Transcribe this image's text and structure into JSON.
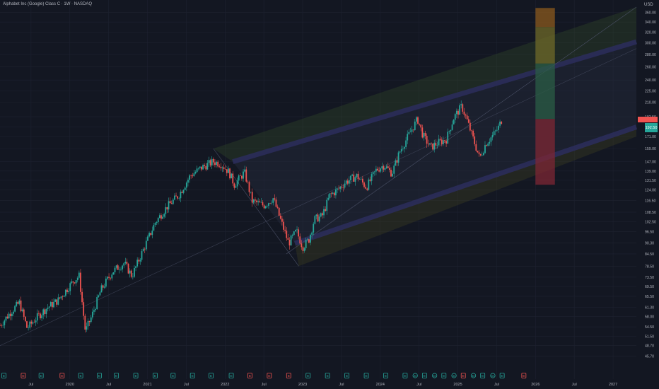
{
  "header": {
    "title": "Alphabet Inc (Google) Class C · 1W · NASDAQ",
    "currency": "USD"
  },
  "colors": {
    "background": "#131722",
    "grid": "#1e2230",
    "up": "#26a69a",
    "down": "#ef5350",
    "label_price": "#26a69a",
    "label_target": "#ef5350"
  },
  "price_labels": {
    "current": "192.50",
    "target": ""
  },
  "chart_data": {
    "type": "candlestick",
    "title": "Alphabet Inc (Google) Class C · 1W · NASDAQ",
    "y_scale": "log",
    "ylim": [
      43,
      372
    ],
    "y_ticks": [
      45.7,
      48.7,
      51.5,
      54.5,
      58,
      61.3,
      65.5,
      69.5,
      73.5,
      78.5,
      84.5,
      90.3,
      96.5,
      102.5,
      108.5,
      116.5,
      124,
      131.5,
      139,
      147,
      159,
      171,
      181,
      192.5,
      210,
      225,
      240,
      260,
      280,
      300,
      320,
      340,
      360
    ],
    "y_tick_labels": [
      "45.70",
      "48.70",
      "51.50",
      "54.50",
      "58.00",
      "61.30",
      "65.50",
      "69.50",
      "73.50",
      "78.50",
      "84.50",
      "90.30",
      "96.50",
      "102.50",
      "108.50",
      "116.50",
      "124.00",
      "131.50",
      "139.00",
      "147.00",
      "159.00",
      "171.00",
      "181.00",
      "192.50",
      "210.00",
      "225.00",
      "240.00",
      "260.00",
      "280.00",
      "300.00",
      "320.00",
      "340.00",
      "360.00"
    ],
    "x_range": [
      2019.1,
      2027.3
    ],
    "x_ticks": [
      2019.5,
      2020,
      2020.5,
      2021,
      2021.5,
      2022,
      2022.5,
      2023,
      2023.5,
      2024,
      2024.5,
      2025,
      2025.5,
      2026,
      2026.5,
      2027
    ],
    "x_tick_labels": [
      "Jul",
      "2020",
      "Jul",
      "2021",
      "Jul",
      "2022",
      "Jul",
      "2023",
      "Jul",
      "2024",
      "Jul",
      "2025",
      "Jul",
      "2026",
      "Jul",
      "2027"
    ],
    "price_path": [
      [
        2019.1,
        55
      ],
      [
        2019.25,
        60
      ],
      [
        2019.35,
        63
      ],
      [
        2019.45,
        54
      ],
      [
        2019.55,
        57
      ],
      [
        2019.7,
        61
      ],
      [
        2019.85,
        64
      ],
      [
        2020.05,
        72
      ],
      [
        2020.12,
        74
      ],
      [
        2020.2,
        53
      ],
      [
        2020.28,
        58
      ],
      [
        2020.4,
        68
      ],
      [
        2020.55,
        76
      ],
      [
        2020.7,
        80
      ],
      [
        2020.8,
        74
      ],
      [
        2020.95,
        87
      ],
      [
        2021.1,
        102
      ],
      [
        2021.25,
        112
      ],
      [
        2021.4,
        120
      ],
      [
        2021.55,
        135
      ],
      [
        2021.7,
        142
      ],
      [
        2021.85,
        147
      ],
      [
        2021.95,
        145
      ],
      [
        2022.05,
        138
      ],
      [
        2022.12,
        128
      ],
      [
        2022.25,
        138
      ],
      [
        2022.35,
        116
      ],
      [
        2022.5,
        113
      ],
      [
        2022.62,
        118
      ],
      [
        2022.72,
        103
      ],
      [
        2022.82,
        90
      ],
      [
        2022.92,
        97
      ],
      [
        2023.0,
        88
      ],
      [
        2023.08,
        92
      ],
      [
        2023.15,
        104
      ],
      [
        2023.25,
        106
      ],
      [
        2023.35,
        120
      ],
      [
        2023.45,
        124
      ],
      [
        2023.55,
        130
      ],
      [
        2023.7,
        135
      ],
      [
        2023.82,
        126
      ],
      [
        2023.95,
        140
      ],
      [
        2024.05,
        144
      ],
      [
        2024.15,
        137
      ],
      [
        2024.25,
        156
      ],
      [
        2024.35,
        170
      ],
      [
        2024.48,
        190
      ],
      [
        2024.55,
        172
      ],
      [
        2024.65,
        160
      ],
      [
        2024.75,
        165
      ],
      [
        2024.85,
        168
      ],
      [
        2024.95,
        192
      ],
      [
        2025.05,
        205
      ],
      [
        2025.12,
        188
      ],
      [
        2025.2,
        168
      ],
      [
        2025.28,
        150
      ],
      [
        2025.36,
        164
      ],
      [
        2025.45,
        172
      ],
      [
        2025.52,
        180
      ],
      [
        2025.58,
        192.5
      ]
    ],
    "channel": {
      "main": {
        "from": [
          2022.79,
          84.5
        ],
        "to": [
          2027.3,
          372
        ]
      },
      "upper_dark_band": {
        "from": [
          2022.1,
          147
        ],
        "to": [
          2027.3,
          302
        ],
        "width_ticks": 1.2
      },
      "lower_dark_band": {
        "from": [
          2022.9,
          90
        ],
        "to": [
          2027.3,
          181
        ],
        "width_ticks": 1.2
      },
      "upper_fill": {
        "from": [
          2021.85,
          159
        ],
        "to": [
          2027.3,
          372
        ]
      },
      "lower_fill": {
        "from": [
          2022.95,
          78.5
        ],
        "to": [
          2027.3,
          171
        ]
      }
    },
    "long_line": {
      "from": [
        2019.1,
        48.7
      ],
      "to": [
        2027.3,
        290
      ]
    },
    "target_boxes": [
      {
        "x0": 2026.0,
        "x1": 2026.25,
        "y0": 330,
        "y1": 370,
        "color": "#8b5a1e"
      },
      {
        "x0": 2026.0,
        "x1": 2026.25,
        "y0": 265,
        "y1": 330,
        "color": "#6f6a28"
      },
      {
        "x0": 2026.0,
        "x1": 2026.25,
        "y0": 190,
        "y1": 265,
        "color": "#2b5c45"
      },
      {
        "x0": 2026.0,
        "x1": 2026.25,
        "y0": 128,
        "y1": 190,
        "color": "#7d2734"
      }
    ],
    "events": [
      {
        "x": 2019.15,
        "type": "E",
        "kind": "up"
      },
      {
        "x": 2019.4,
        "type": "E",
        "kind": "down"
      },
      {
        "x": 2019.63,
        "type": "E",
        "kind": "up"
      },
      {
        "x": 2019.9,
        "type": "E",
        "kind": "down"
      },
      {
        "x": 2020.14,
        "type": "E",
        "kind": "up"
      },
      {
        "x": 2020.38,
        "type": "E",
        "kind": "up"
      },
      {
        "x": 2020.6,
        "type": "E",
        "kind": "up"
      },
      {
        "x": 2020.85,
        "type": "E",
        "kind": "up"
      },
      {
        "x": 2021.1,
        "type": "E",
        "kind": "up"
      },
      {
        "x": 2021.33,
        "type": "E",
        "kind": "up"
      },
      {
        "x": 2021.58,
        "type": "E",
        "kind": "up"
      },
      {
        "x": 2021.82,
        "type": "E",
        "kind": "up"
      },
      {
        "x": 2022.08,
        "type": "E",
        "kind": "up"
      },
      {
        "x": 2022.32,
        "type": "E",
        "kind": "down"
      },
      {
        "x": 2022.57,
        "type": "E",
        "kind": "down"
      },
      {
        "x": 2022.82,
        "type": "E",
        "kind": "down"
      },
      {
        "x": 2023.07,
        "type": "E",
        "kind": "up"
      },
      {
        "x": 2023.32,
        "type": "E",
        "kind": "up"
      },
      {
        "x": 2023.57,
        "type": "E",
        "kind": "up"
      },
      {
        "x": 2023.82,
        "type": "E",
        "kind": "up"
      },
      {
        "x": 2024.07,
        "type": "E",
        "kind": "up"
      },
      {
        "x": 2024.32,
        "type": "E",
        "kind": "up"
      },
      {
        "x": 2024.45,
        "type": "D",
        "kind": "up"
      },
      {
        "x": 2024.57,
        "type": "E",
        "kind": "up"
      },
      {
        "x": 2024.7,
        "type": "D",
        "kind": "up"
      },
      {
        "x": 2024.82,
        "type": "E",
        "kind": "up"
      },
      {
        "x": 2024.95,
        "type": "D",
        "kind": "up"
      },
      {
        "x": 2025.07,
        "type": "E",
        "kind": "down"
      },
      {
        "x": 2025.2,
        "type": "D",
        "kind": "up"
      },
      {
        "x": 2025.32,
        "type": "E",
        "kind": "up"
      },
      {
        "x": 2025.45,
        "type": "D",
        "kind": "up"
      },
      {
        "x": 2025.57,
        "type": "E",
        "kind": "up"
      },
      {
        "x": 2025.85,
        "type": "E",
        "kind": "down"
      }
    ]
  }
}
